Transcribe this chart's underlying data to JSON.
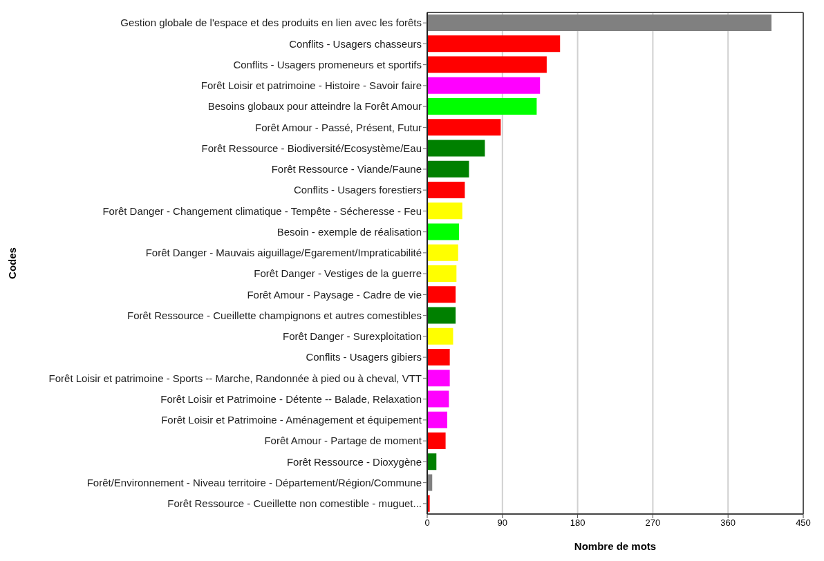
{
  "chart_data": {
    "type": "bar",
    "orientation": "horizontal",
    "xlabel": "Nombre de mots",
    "ylabel": "Codes",
    "categories": [
      "Gestion globale de l'espace et des produits en lien avec les forêts",
      "Conflits - Usagers chasseurs",
      "Conflits - Usagers promeneurs et sportifs",
      "Forêt Loisir et patrimoine - Histoire - Savoir faire",
      "Besoins globaux pour atteindre la Forêt Amour",
      "Forêt Amour - Passé, Présent, Futur",
      "Forêt Ressource - Biodiversité/Ecosystème/Eau",
      "Forêt Ressource - Viande/Faune",
      "Conflits - Usagers forestiers",
      "Forêt Danger - Changement  climatique - Tempête - Sécheresse - Feu",
      "Besoin - exemple de réalisation",
      "Forêt Danger - Mauvais aiguillage/Egarement/Impraticabilité",
      "Forêt Danger - Vestiges de la guerre",
      "Forêt Amour - Paysage - Cadre de vie",
      "Forêt Ressource - Cueillette champignons et autres comestibles",
      "Forêt Danger - Surexploitation",
      "Conflits - Usagers gibiers",
      "Forêt Loisir et patrimoine - Sports -- Marche,  Randonnée à pied ou à cheval, VTT",
      "Forêt Loisir et Patrimoine - Détente -- Balade, Relaxation",
      "Forêt Loisir et Patrimoine - Aménagement et équipement",
      "Forêt Amour - Partage de moment",
      "Forêt Ressource - Dioxygène",
      "Forêt/Environnement - Niveau territoire - Département/Région/Commune",
      "Forêt Ressource - Cueillette non comestible - muguet..."
    ],
    "values": [
      412,
      159,
      143,
      135,
      131,
      88,
      69,
      50,
      45,
      42,
      38,
      37,
      35,
      34,
      34,
      31,
      27,
      27,
      26,
      24,
      22,
      11,
      6,
      3
    ],
    "colors": [
      "#808080",
      "#ff0000",
      "#ff0000",
      "#ff00ff",
      "#00ff00",
      "#ff0000",
      "#008000",
      "#008000",
      "#ff0000",
      "#ffff00",
      "#00ff00",
      "#ffff00",
      "#ffff00",
      "#ff0000",
      "#008000",
      "#ffff00",
      "#ff0000",
      "#ff00ff",
      "#ff00ff",
      "#ff00ff",
      "#ff0000",
      "#008000",
      "#808080",
      "#ff0000"
    ],
    "xlim": [
      0,
      450
    ],
    "xticks": [
      0,
      90,
      180,
      270,
      360,
      450
    ],
    "grid": "x",
    "legend": false
  }
}
